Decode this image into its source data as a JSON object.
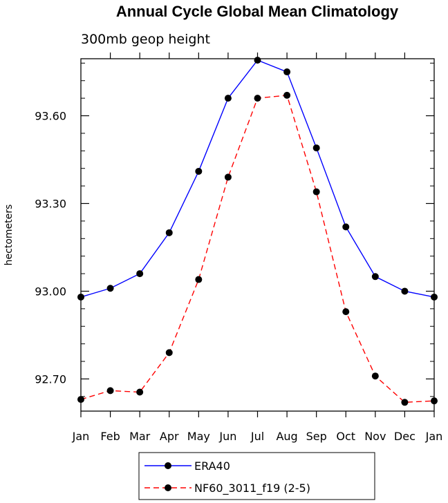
{
  "chart_data": {
    "type": "line",
    "title": "Annual Cycle Global Mean Climatology",
    "subtitle": "300mb geop height",
    "xlabel": "",
    "ylabel": "hectometers",
    "categories": [
      "Jan",
      "Feb",
      "Mar",
      "Apr",
      "May",
      "Jun",
      "Jul",
      "Aug",
      "Sep",
      "Oct",
      "Nov",
      "Dec",
      "Jan"
    ],
    "yticks": [
      92.7,
      93.0,
      93.3,
      93.6
    ],
    "ytick_labels": [
      "92.70",
      "93.00",
      "93.30",
      "93.60"
    ],
    "ylim": [
      92.59,
      93.795
    ],
    "grid": false,
    "legend_position": "bottom-center",
    "series": [
      {
        "name": "ERA40",
        "color": "#0000ff",
        "dash": "solid",
        "values": [
          92.98,
          93.01,
          93.06,
          93.2,
          93.41,
          93.66,
          93.79,
          93.75,
          93.49,
          93.22,
          93.05,
          93.0,
          92.98
        ]
      },
      {
        "name": "NF60_3011_f19 (2-5)",
        "color": "#ff0000",
        "dash": "dashed",
        "values": [
          92.63,
          92.66,
          92.655,
          92.79,
          93.04,
          93.39,
          93.66,
          93.67,
          93.34,
          92.93,
          92.71,
          92.62,
          92.625
        ]
      }
    ]
  }
}
